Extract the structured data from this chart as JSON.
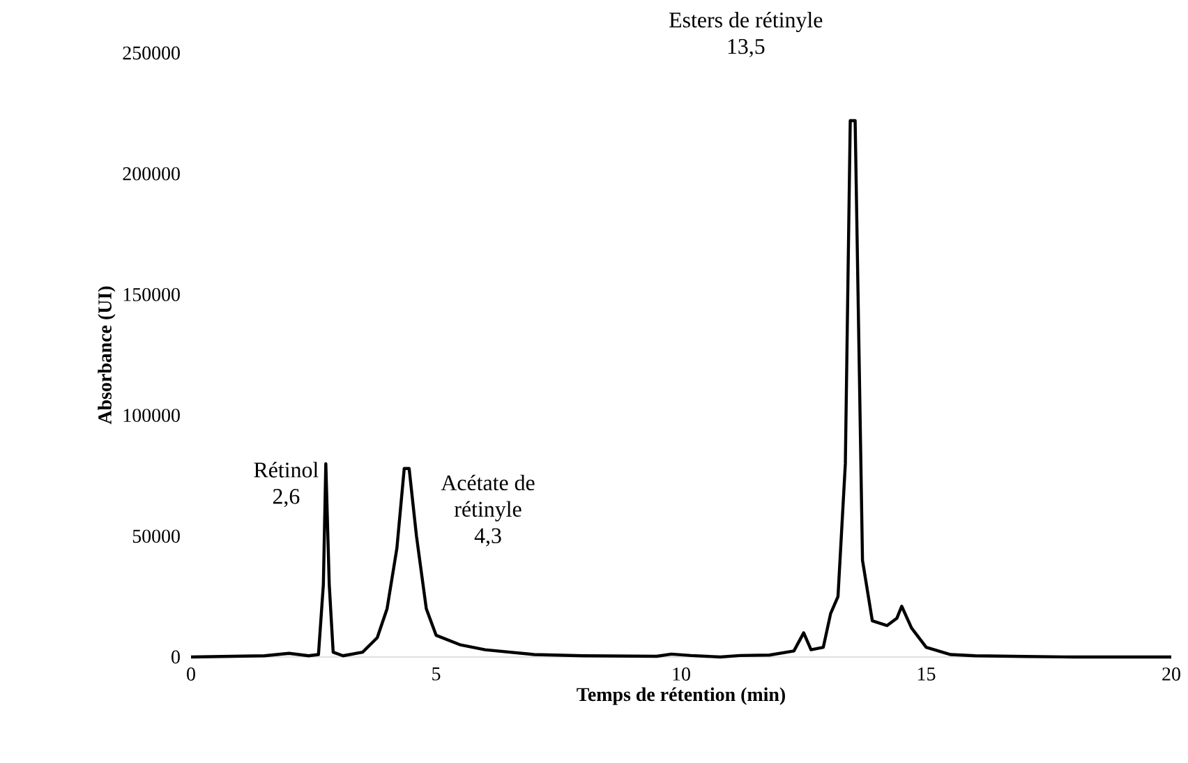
{
  "chart_data": {
    "type": "line",
    "xlabel": "Temps de rétention (min)",
    "ylabel": "Absorbance (UI)",
    "xlim": [
      0,
      20
    ],
    "xticks": [
      0,
      5,
      10,
      15,
      20
    ],
    "ylim": [
      0,
      250000
    ],
    "yticks": [
      0,
      50000,
      100000,
      150000,
      200000,
      250000
    ],
    "color": "#000000",
    "x": [
      0,
      1.5,
      2.0,
      2.4,
      2.6,
      2.7,
      2.75,
      2.82,
      2.9,
      3.1,
      3.5,
      3.8,
      4.0,
      4.2,
      4.35,
      4.45,
      4.6,
      4.8,
      5.0,
      5.5,
      6,
      7,
      8,
      9.5,
      9.8,
      10.2,
      10.8,
      11.2,
      11.8,
      12.3,
      12.5,
      12.65,
      12.9,
      13.05,
      13.2,
      13.35,
      13.45,
      13.55,
      13.7,
      13.9,
      14.2,
      14.4,
      14.5,
      14.7,
      15.0,
      15.5,
      16,
      17,
      18,
      20
    ],
    "values": [
      0,
      500,
      1500,
      500,
      1000,
      30000,
      80000,
      30000,
      2000,
      500,
      2000,
      8000,
      20000,
      45000,
      78000,
      78000,
      50000,
      20000,
      9000,
      5000,
      3000,
      1000,
      500,
      300,
      1200,
      600,
      0,
      600,
      800,
      2500,
      10000,
      3000,
      4000,
      18000,
      25000,
      80000,
      222000,
      222000,
      40000,
      15000,
      13000,
      16000,
      21000,
      12000,
      4000,
      1000,
      500,
      200,
      0,
      0
    ],
    "annotations": [
      "Rétinol",
      "2,6",
      "Acétate de",
      "rétinyle",
      "4,3",
      "Esters de rétinyle",
      "13,5"
    ]
  }
}
